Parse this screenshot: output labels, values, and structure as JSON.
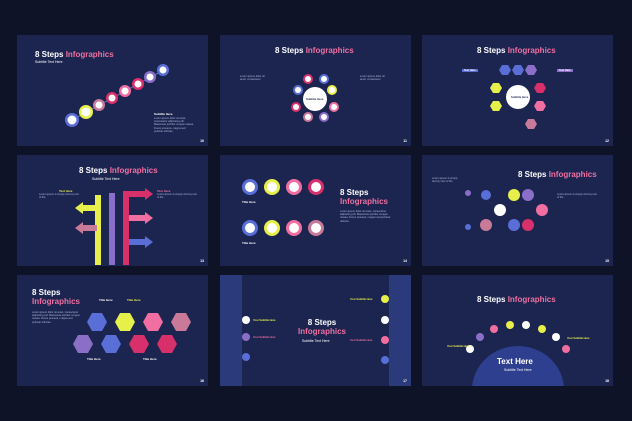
{
  "colors": {
    "bg": "#0f1328",
    "slide": "#1c2550",
    "pink": "#f06fa0",
    "yellow": "#e7f04a",
    "purple": "#8a6ec8",
    "blue": "#5a6ed8",
    "magenta": "#d8306a",
    "rose": "#c87a98"
  },
  "slides": [
    {
      "title_a": "8 Steps ",
      "title_b": "Infographics",
      "subtitle": "Subtitle Text Here",
      "label": "Subtitle Here",
      "number": "10",
      "desc": "Lorem ipsum dolor sit amet, consectetur adipiscing elit. Maecenas porttitor congue massa. Fusce posuere, magna sed pulvinar ultricies."
    },
    {
      "title_a": "8 Steps ",
      "title_b": "Infographics",
      "center": "Subtitle Here",
      "number": "11",
      "desc": "Lorem ipsum dolor sit amet, consectetur"
    },
    {
      "title_a": "8 Steps ",
      "title_b": "Infographics",
      "center": "Subtitle Here",
      "number": "12",
      "tag": "Text Here"
    },
    {
      "title_a": "8 Steps ",
      "title_b": "Infographics",
      "subtitle": "Subtitle Text Here",
      "label": "Text Here",
      "number": "13",
      "desc": "Lorem ipsum is simply dummy text of the"
    },
    {
      "title_a": "8 Steps",
      "title_b": "Infographics",
      "label": "Title Here",
      "number": "14",
      "desc": "Lorem ipsum dolor sit amet, consectetur adipiscing elit. Maecenas porttitor congue massa. Fusce posuere, magna sed pulvinar ultricies."
    },
    {
      "title_a": "8 Steps ",
      "title_b": "Infographics",
      "number": "15",
      "desc": "Lorem ipsum is simply dummy text of the"
    },
    {
      "title_a": "8 Steps",
      "title_b": "Infographics",
      "label": "Title Here",
      "number": "16",
      "desc": "Lorem ipsum dolor sit amet, consectetur adipiscing elit. Maecenas porttitor congue massa. Fusce posuere, magna sed pulvinar ultricies."
    },
    {
      "title_a": "8 Steps",
      "title_b": "Infographics",
      "subtitle": "Subtitle Text Here",
      "label": "Your Subtitle Here",
      "number": "17"
    },
    {
      "title_a": "8 Steps ",
      "title_b": "Infographics",
      "center": "Text Here",
      "subtitle": "Subtitle Text Here",
      "label": "Your Subtitle Here",
      "number": "18"
    }
  ]
}
